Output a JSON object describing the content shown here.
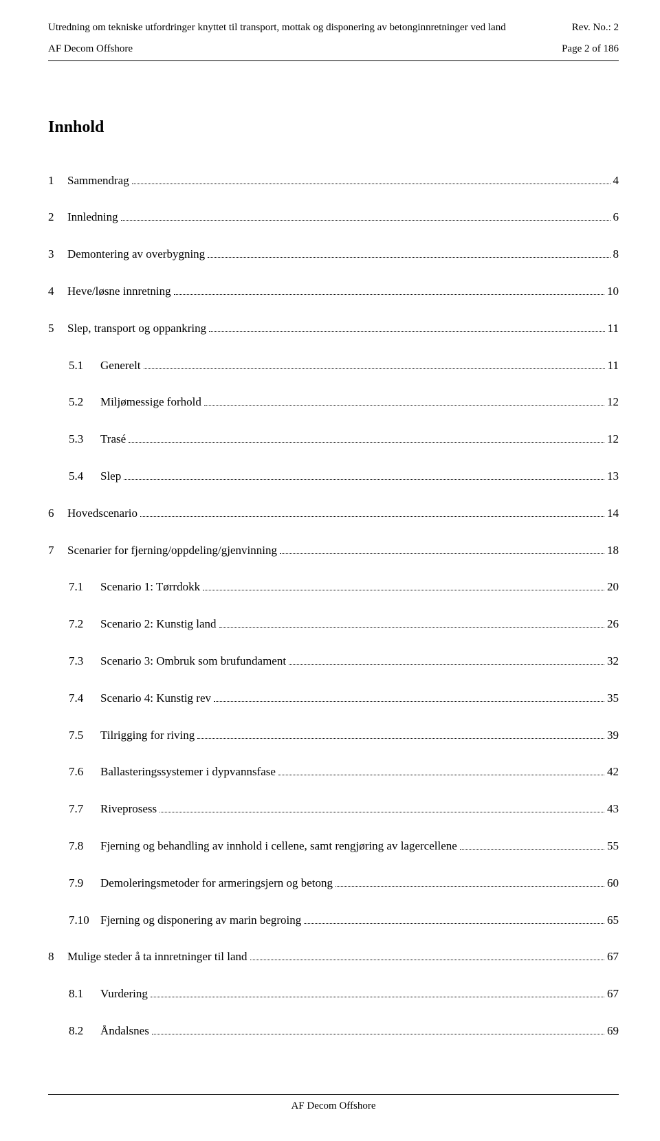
{
  "header": {
    "title": "Utredning om tekniske utfordringer knyttet til transport, mottak og disponering av betonginnretninger ved land",
    "rev": "Rev. No.: 2",
    "org": "AF Decom Offshore",
    "page": "Page 2 of 186"
  },
  "toc_title": "Innhold",
  "toc": [
    {
      "num": "1",
      "label": "Sammendrag",
      "page": "4",
      "level": 0
    },
    {
      "num": "2",
      "label": "Innledning",
      "page": "6",
      "level": 0
    },
    {
      "num": "3",
      "label": "Demontering av overbygning",
      "page": "8",
      "level": 0
    },
    {
      "num": "4",
      "label": "Heve/løsne innretning",
      "page": "10",
      "level": 0
    },
    {
      "num": "5",
      "label": "Slep, transport og oppankring",
      "page": "11",
      "level": 0
    },
    {
      "num": "5.1",
      "label": "Generelt",
      "page": "11",
      "level": 1
    },
    {
      "num": "5.2",
      "label": "Miljømessige forhold",
      "page": "12",
      "level": 1
    },
    {
      "num": "5.3",
      "label": "Trasé",
      "page": "12",
      "level": 1
    },
    {
      "num": "5.4",
      "label": "Slep",
      "page": "13",
      "level": 1
    },
    {
      "num": "6",
      "label": "Hovedscenario",
      "page": "14",
      "level": 0
    },
    {
      "num": "7",
      "label": "Scenarier for fjerning/oppdeling/gjenvinning",
      "page": "18",
      "level": 0
    },
    {
      "num": "7.1",
      "label": "Scenario 1: Tørrdokk",
      "page": "20",
      "level": 1
    },
    {
      "num": "7.2",
      "label": "Scenario 2: Kunstig land",
      "page": "26",
      "level": 1
    },
    {
      "num": "7.3",
      "label": "Scenario 3: Ombruk som brufundament",
      "page": "32",
      "level": 1
    },
    {
      "num": "7.4",
      "label": "Scenario 4: Kunstig rev",
      "page": "35",
      "level": 1
    },
    {
      "num": "7.5",
      "label": "Tilrigging for riving",
      "page": "39",
      "level": 1
    },
    {
      "num": "7.6",
      "label": "Ballasteringssystemer i dypvannsfase",
      "page": "42",
      "level": 1
    },
    {
      "num": "7.7",
      "label": "Riveprosess",
      "page": "43",
      "level": 1
    },
    {
      "num": "7.8",
      "label": "Fjerning og behandling av innhold i cellene, samt rengjøring av lagercellene",
      "page": "55",
      "level": 1
    },
    {
      "num": "7.9",
      "label": "Demoleringsmetoder for armeringsjern og betong",
      "page": "60",
      "level": 1
    },
    {
      "num": "7.10",
      "label": "Fjerning og disponering av marin begroing",
      "page": "65",
      "level": 1
    },
    {
      "num": "8",
      "label": "Mulige steder å ta innretninger til land",
      "page": "67",
      "level": 0
    },
    {
      "num": "8.1",
      "label": "Vurdering",
      "page": "67",
      "level": 1
    },
    {
      "num": "8.2",
      "label": "Åndalsnes",
      "page": "69",
      "level": 1
    }
  ],
  "footer": "AF Decom Offshore",
  "colors": {
    "text": "#000000",
    "background": "#ffffff",
    "border": "#000000"
  },
  "typography": {
    "family": "Times New Roman",
    "body_size_pt": 12,
    "title_size_pt": 16
  }
}
